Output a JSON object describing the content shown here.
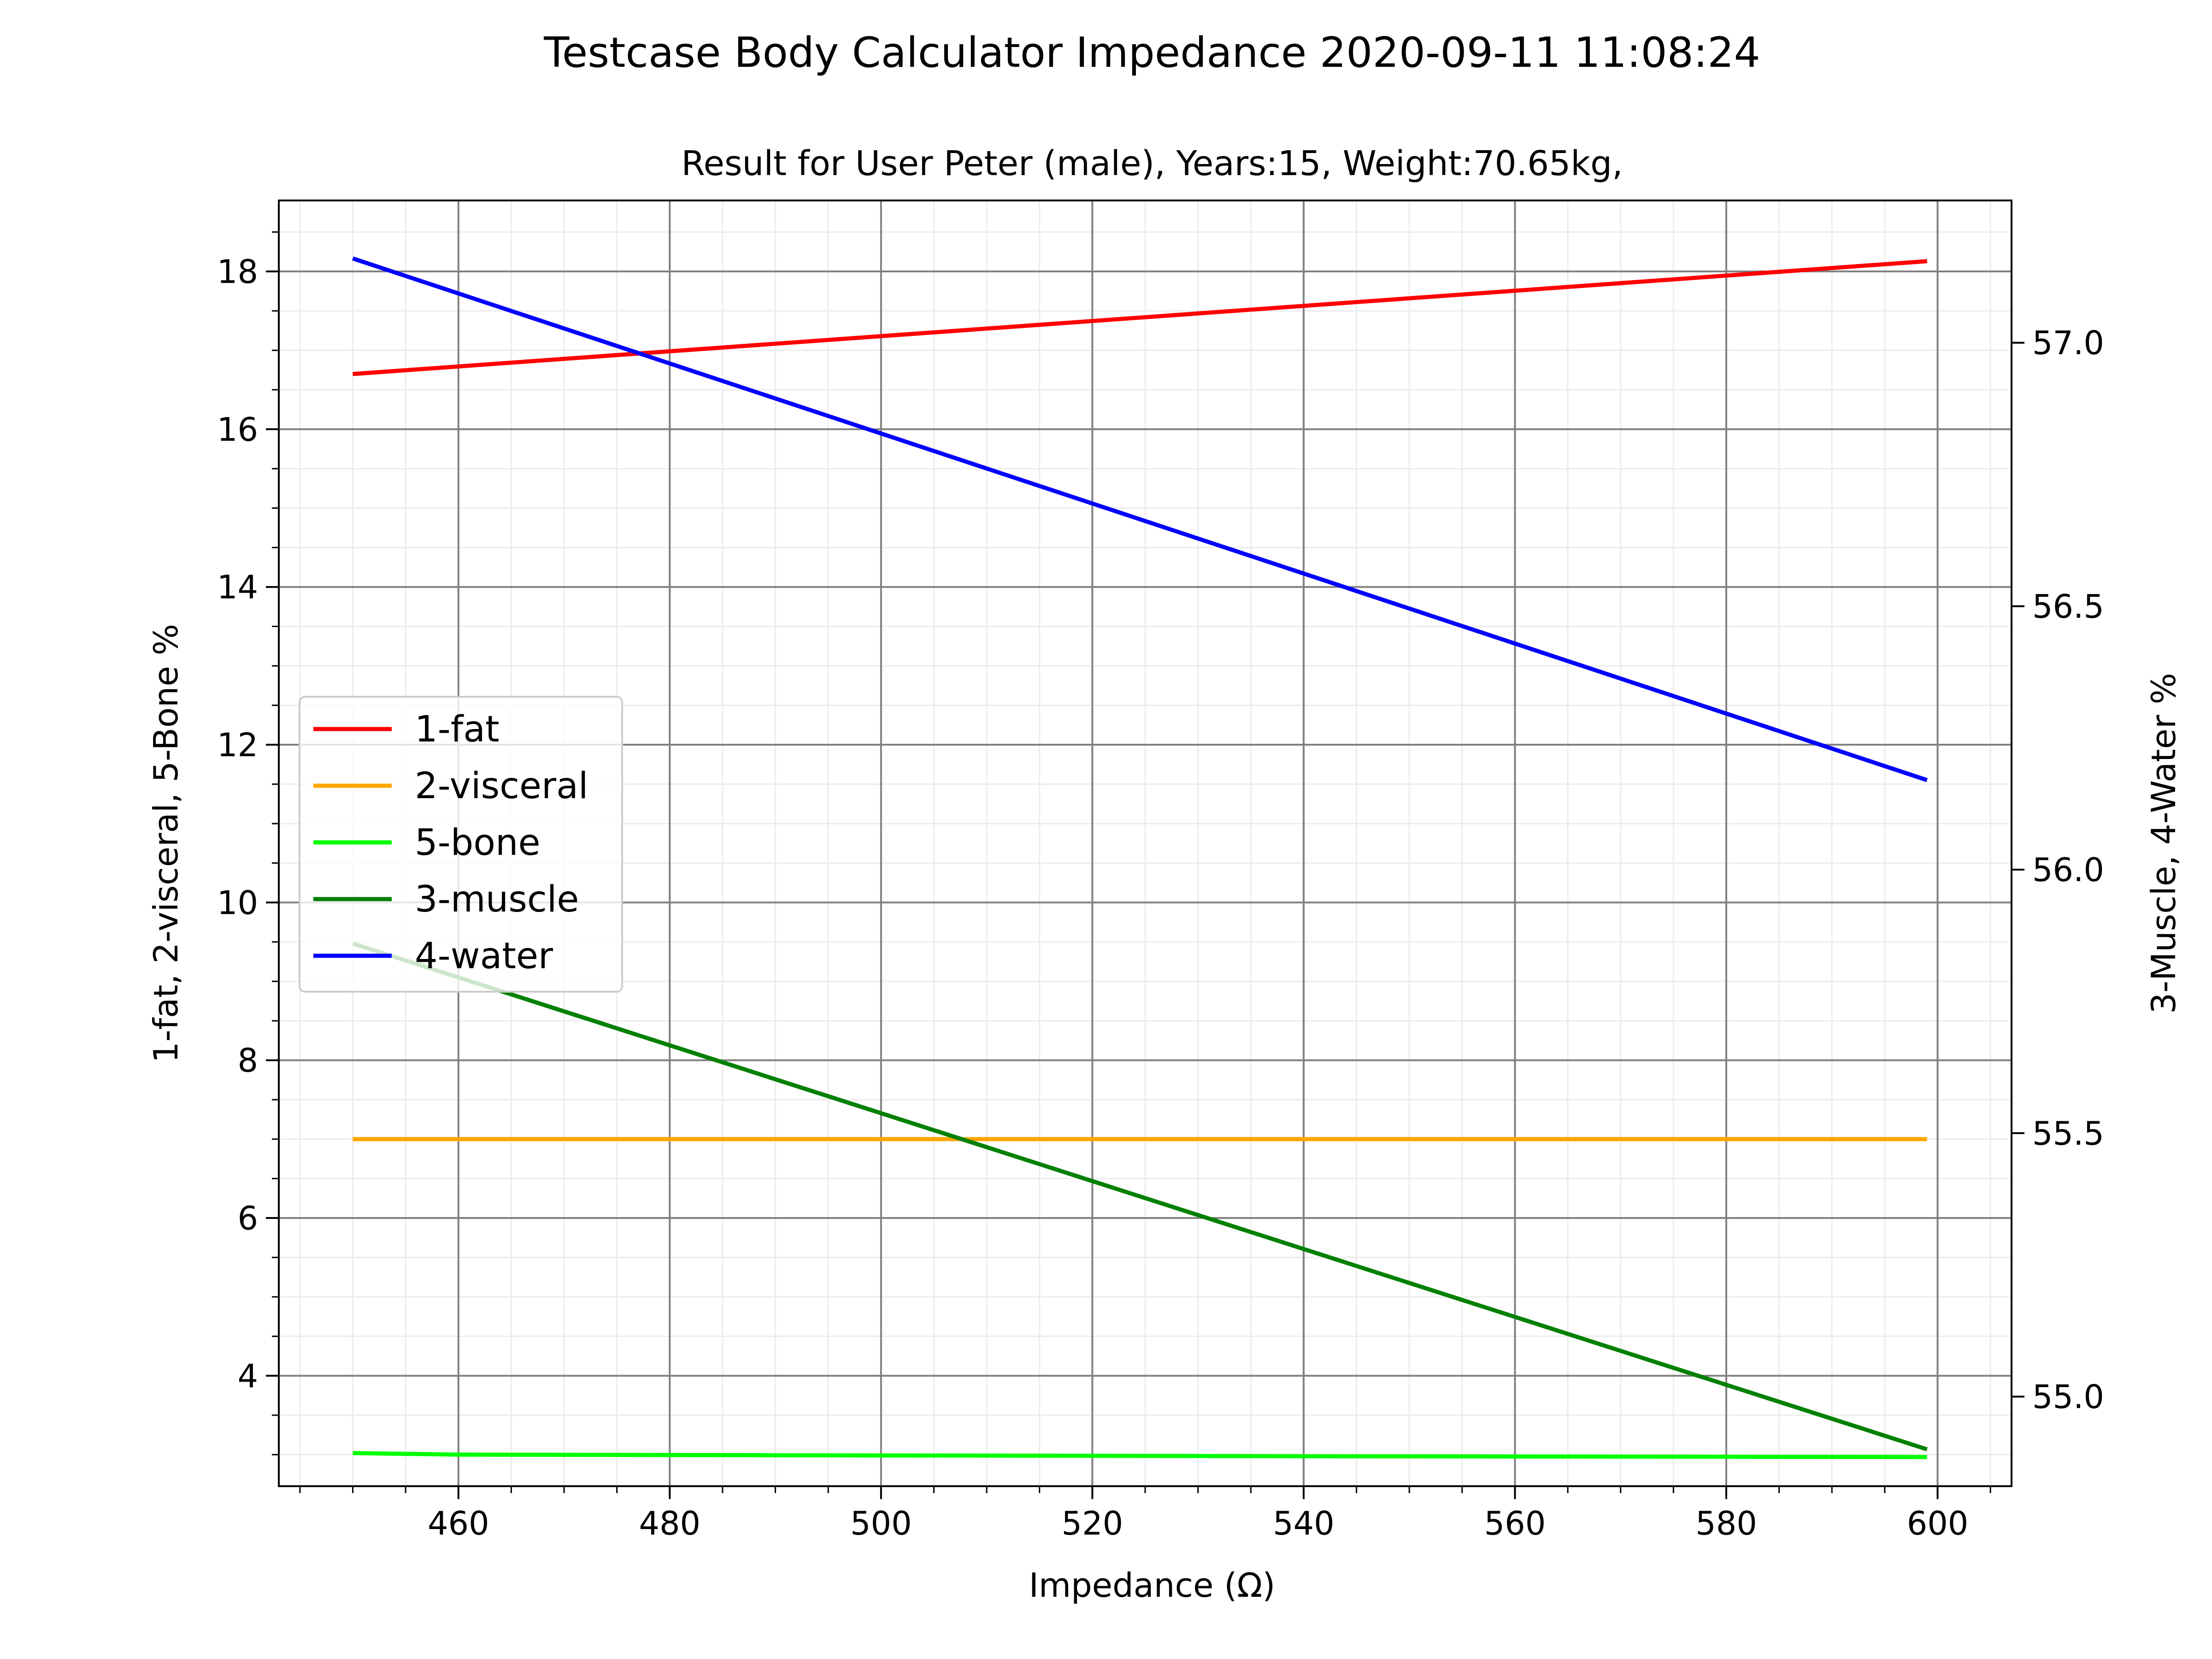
{
  "chart_data": {
    "type": "line",
    "suptitle": "Testcase Body Calculator Impedance 2020-09-11 11:08:24",
    "title": "Result for User Peter (male), Years:15, Weight:70.65kg,",
    "xlabel": "Impedance (Ω)",
    "ylabel_left": "1-fat, 2-visceral, 5-Bone %",
    "ylabel_right": "3-Muscle, 4-Water %",
    "xlim": [
      443,
      607
    ],
    "ylim_left": [
      2.6,
      18.9
    ],
    "ylim_right": [
      54.83,
      57.27
    ],
    "x_ticks": [
      460,
      480,
      500,
      520,
      540,
      560,
      580,
      600
    ],
    "y_ticks_left": [
      4,
      6,
      8,
      10,
      12,
      14,
      16,
      18
    ],
    "y_ticks_right": [
      55.0,
      55.5,
      56.0,
      56.5,
      57.0
    ],
    "y_tick_labels_right": [
      "55.0",
      "55.5",
      "56.0",
      "56.5",
      "57.0"
    ],
    "grid": true,
    "legend_position": "center-left",
    "series": [
      {
        "name": "1-fat",
        "color": "#ff0000",
        "axis": "left",
        "x": [
          450,
          599
        ],
        "values": [
          16.7,
          18.13
        ]
      },
      {
        "name": "2-visceral",
        "color": "#ffa500",
        "axis": "left",
        "x": [
          450,
          599
        ],
        "values": [
          7.0,
          7.0
        ]
      },
      {
        "name": "5-bone",
        "color": "#00ff00",
        "axis": "left",
        "x": [
          450,
          460,
          500,
          540,
          599
        ],
        "values": [
          3.02,
          3.0,
          2.99,
          2.98,
          2.97
        ]
      },
      {
        "name": "3-muscle",
        "color": "#008000",
        "axis": "right",
        "x": [
          450,
          599
        ],
        "values": [
          55.86,
          54.9
        ]
      },
      {
        "name": "4-water",
        "color": "#0000ff",
        "axis": "right",
        "x": [
          450,
          599
        ],
        "values": [
          57.16,
          56.17
        ]
      }
    ]
  }
}
